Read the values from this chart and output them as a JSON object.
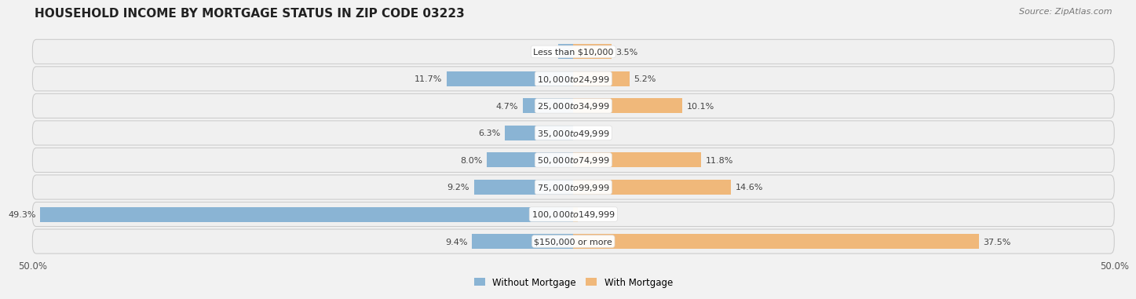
{
  "title": "HOUSEHOLD INCOME BY MORTGAGE STATUS IN ZIP CODE 03223",
  "source": "Source: ZipAtlas.com",
  "categories": [
    "Less than $10,000",
    "$10,000 to $24,999",
    "$25,000 to $34,999",
    "$35,000 to $49,999",
    "$50,000 to $74,999",
    "$75,000 to $99,999",
    "$100,000 to $149,999",
    "$150,000 or more"
  ],
  "without_mortgage": [
    1.4,
    11.7,
    4.7,
    6.3,
    8.0,
    9.2,
    49.3,
    9.4
  ],
  "with_mortgage": [
    3.5,
    5.2,
    10.1,
    0.0,
    11.8,
    14.6,
    0.41,
    37.5
  ],
  "without_mortgage_color": "#8ab4d4",
  "with_mortgage_color": "#f0b87a",
  "background_color": "#f2f2f2",
  "row_bg_even": "#efefef",
  "row_border": "#cccccc",
  "xlim_left": -50.0,
  "xlim_right": 50.0,
  "legend_without": "Without Mortgage",
  "legend_with": "With Mortgage",
  "title_fontsize": 11,
  "source_fontsize": 8,
  "label_fontsize": 8.5,
  "category_fontsize": 8,
  "value_fontsize": 8
}
